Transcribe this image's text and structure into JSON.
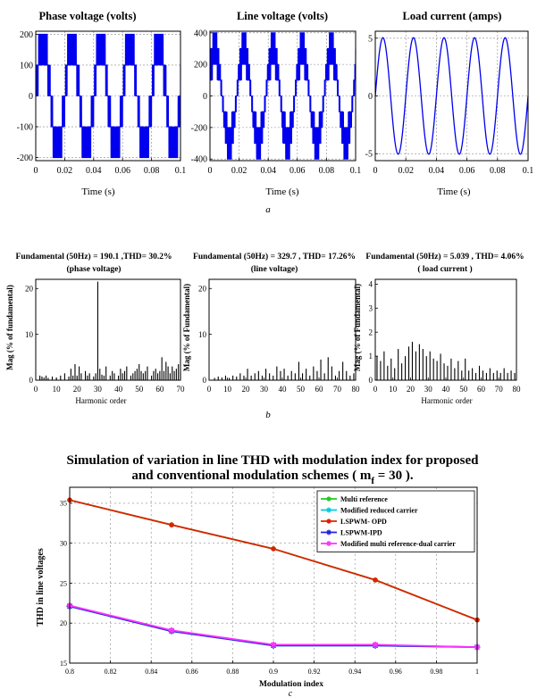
{
  "panel_letters": {
    "a": "a",
    "b": "b",
    "c": "c"
  },
  "colors": {
    "wave": "#0000ee",
    "bar": "#000000",
    "grid": "#888888",
    "multi_ref": "#22cc22",
    "mod_reduced": "#00ccdd",
    "opd": "#dd2200",
    "ipd": "#2222dd",
    "mmrdc": "#ff33ff"
  },
  "chart_data": [
    {
      "id": "a1",
      "type": "line",
      "title": "Phase voltage (volts)",
      "xlabel": "Time (s)",
      "ylabel": "",
      "xlim": [
        0,
        0.1
      ],
      "ylim": [
        -210,
        210
      ],
      "xticks": [
        0,
        0.02,
        0.04,
        0.06,
        0.08,
        0.1
      ],
      "xtick_labels": [
        "0",
        "0.02",
        "0.04",
        "0.06",
        "0.08",
        "0.1"
      ],
      "yticks": [
        -200,
        -100,
        0,
        100,
        200
      ],
      "ytick_labels": [
        "-200",
        "-100",
        "0",
        "100",
        "200"
      ],
      "grid": true,
      "waveform": {
        "kind": "multilevel_pwm",
        "fundamental_hz": 50,
        "amplitude": 200,
        "dc_step": 100,
        "levels": 2,
        "carrier_ratio": 30,
        "modulation_index": 0.95
      }
    },
    {
      "id": "a2",
      "type": "line",
      "title": "Line voltage (volts)",
      "xlabel": "Time (s)",
      "ylabel": "",
      "xlim": [
        0,
        0.1
      ],
      "ylim": [
        -410,
        410
      ],
      "xticks": [
        0,
        0.02,
        0.04,
        0.06,
        0.08,
        0.1
      ],
      "xtick_labels": [
        "0",
        "0.02",
        "0.04",
        "0.06",
        "0.08",
        "0.1"
      ],
      "yticks": [
        -400,
        -200,
        0,
        200,
        400
      ],
      "ytick_labels": [
        "-400",
        "-200",
        "0",
        "200",
        "400"
      ],
      "grid": true,
      "waveform": {
        "kind": "multilevel_line",
        "fundamental_hz": 50,
        "amplitude": 400,
        "dc_step": 100,
        "levels": 4,
        "carrier_ratio": 30,
        "modulation_index": 0.95
      }
    },
    {
      "id": "a3",
      "type": "line",
      "title": "Load current (amps)",
      "xlabel": "Time (s)",
      "ylabel": "",
      "xlim": [
        0,
        0.1
      ],
      "ylim": [
        -5.6,
        5.6
      ],
      "xticks": [
        0,
        0.02,
        0.04,
        0.06,
        0.08,
        0.1
      ],
      "xtick_labels": [
        "0",
        "0.02",
        "0.04",
        "0.06",
        "0.08",
        "0.1"
      ],
      "yticks": [
        -5,
        0,
        5
      ],
      "ytick_labels": [
        "-5",
        "0",
        "5"
      ],
      "grid": true,
      "waveform": {
        "kind": "sine",
        "fundamental_hz": 50,
        "amplitude": 5.039
      }
    },
    {
      "id": "b1",
      "type": "bar",
      "title": "Fundamental (50Hz) = 190.1 ,THD= 30.2%",
      "subtitle": "(phase voltage)",
      "xlabel": "Harmonic order",
      "ylabel": "Mag (% of fundamental)",
      "xlim": [
        0,
        70
      ],
      "ylim": [
        0,
        22
      ],
      "xticks": [
        0,
        10,
        20,
        30,
        40,
        50,
        60,
        70
      ],
      "xtick_labels": [
        "0",
        "10",
        "20",
        "30",
        "40",
        "50",
        "60",
        "70"
      ],
      "yticks": [
        0,
        10,
        20
      ],
      "ytick_labels": [
        "0",
        "10",
        "20"
      ],
      "x": [
        2,
        3,
        4,
        5,
        6,
        8,
        10,
        12,
        14,
        16,
        17,
        18,
        19,
        20,
        21,
        22,
        24,
        25,
        26,
        28,
        29,
        30,
        31,
        32,
        33,
        34,
        36,
        37,
        38,
        40,
        41,
        42,
        43,
        44,
        46,
        47,
        48,
        49,
        50,
        51,
        52,
        53,
        54,
        56,
        57,
        58,
        59,
        60,
        61,
        62,
        63,
        64,
        65,
        66,
        67,
        68,
        69,
        70
      ],
      "values": [
        1,
        0.8,
        0.6,
        1,
        0.5,
        0.8,
        0.6,
        1,
        1.5,
        0.8,
        2.5,
        1,
        3.5,
        1,
        3,
        1.5,
        2,
        1,
        1.5,
        0.8,
        1.5,
        21.5,
        2.5,
        1.2,
        1,
        3,
        1,
        2,
        1.5,
        1,
        2.5,
        1.5,
        2,
        3,
        1,
        1.5,
        2,
        2.5,
        3.5,
        2,
        1.5,
        2,
        3,
        1,
        2,
        2.5,
        1.5,
        2,
        5,
        2,
        4,
        3,
        1.5,
        3,
        2,
        2.5,
        3.5,
        2
      ]
    },
    {
      "id": "b2",
      "type": "bar",
      "title": "Fundamental (50Hz) = 329.7 , THD= 17.26%",
      "subtitle": "(line voltage)",
      "xlabel": "",
      "ylabel": "Mag (% of Fundamental)",
      "xlim": [
        0,
        80
      ],
      "ylim": [
        0,
        22
      ],
      "xticks": [
        0,
        10,
        20,
        30,
        40,
        50,
        60,
        70,
        80
      ],
      "xtick_labels": [
        "0",
        "10",
        "20",
        "30",
        "40",
        "50",
        "60",
        "70",
        "80"
      ],
      "yticks": [
        0,
        10,
        20
      ],
      "ytick_labels": [
        "0",
        "10",
        "20"
      ],
      "x": [
        3,
        5,
        7,
        9,
        11,
        13,
        15,
        17,
        19,
        21,
        23,
        25,
        27,
        29,
        31,
        33,
        35,
        37,
        39,
        41,
        43,
        45,
        47,
        49,
        51,
        53,
        55,
        57,
        59,
        61,
        63,
        65,
        67,
        69,
        71,
        73,
        75,
        77,
        79
      ],
      "values": [
        0.5,
        0.8,
        0.6,
        1,
        0.5,
        1,
        0.8,
        1.5,
        1,
        2.5,
        1,
        1.5,
        2,
        1,
        2.5,
        1.5,
        1,
        3,
        2,
        2.5,
        1,
        2,
        1.5,
        4,
        1.5,
        2.5,
        1,
        3,
        2,
        4.5,
        1.5,
        5,
        3,
        1,
        2,
        4,
        2,
        1,
        1.5
      ]
    },
    {
      "id": "b3",
      "type": "bar",
      "title": "Fundamental (50Hz) = 5.039 , THD= 4.06%",
      "subtitle": "( load current )",
      "xlabel": "Harmonic order",
      "ylabel": "Mag (% of Fundamental)",
      "xlim": [
        0,
        80
      ],
      "ylim": [
        0,
        4.2
      ],
      "xticks": [
        0,
        10,
        20,
        30,
        40,
        50,
        60,
        70,
        80
      ],
      "xtick_labels": [
        "0",
        "10",
        "20",
        "30",
        "40",
        "50",
        "60",
        "70",
        "80"
      ],
      "yticks": [
        0,
        1,
        2,
        3,
        4
      ],
      "ytick_labels": [
        "0",
        "1",
        "2",
        "3",
        "4"
      ],
      "x": [
        1,
        3,
        5,
        7,
        9,
        11,
        13,
        15,
        17,
        19,
        21,
        23,
        25,
        27,
        29,
        31,
        33,
        35,
        37,
        39,
        41,
        43,
        45,
        47,
        49,
        51,
        53,
        55,
        57,
        59,
        61,
        63,
        65,
        67,
        69,
        71,
        73,
        75,
        77,
        79
      ],
      "values": [
        1,
        0.8,
        1.2,
        0.6,
        0.9,
        0.5,
        1.3,
        0.7,
        1.0,
        1.4,
        1.6,
        1.2,
        1.5,
        1.3,
        1.0,
        1.2,
        0.9,
        0.8,
        1.1,
        0.7,
        0.6,
        0.9,
        0.5,
        0.8,
        0.4,
        0.9,
        0.4,
        0.5,
        0.3,
        0.6,
        0.4,
        0.3,
        0.5,
        0.3,
        0.4,
        0.3,
        0.5,
        0.3,
        0.4,
        0.3
      ]
    },
    {
      "id": "c",
      "type": "line",
      "title": "Simulation of variation in line THD with modulation index for proposed",
      "title_line2": "and conventional modulation schemes ( m",
      "title_sub": "f",
      "title_tail": " = 30 ).",
      "xlabel": "Modulation index",
      "ylabel": "THD in line voltages",
      "xlim": [
        0.8,
        1.0
      ],
      "ylim": [
        15,
        37
      ],
      "xticks": [
        0.8,
        0.82,
        0.84,
        0.86,
        0.88,
        0.9,
        0.92,
        0.94,
        0.96,
        0.98,
        1
      ],
      "xtick_labels": [
        "0.8",
        "0.82",
        "0.84",
        "0.86",
        "0.88",
        "0.9",
        "0.92",
        "0.94",
        "0.96",
        "0.98",
        "1"
      ],
      "yticks": [
        15,
        20,
        25,
        30,
        35
      ],
      "ytick_labels": [
        "15",
        "20",
        "25",
        "30",
        "35"
      ],
      "grid": true,
      "legend_position": "top-right",
      "x": [
        0.8,
        0.85,
        0.9,
        0.95,
        1.0
      ],
      "series": [
        {
          "name": "Multi reference",
          "values": [
            35.4,
            32.3,
            29.3,
            25.4,
            20.4
          ],
          "color": "#22cc22",
          "marker": "dot"
        },
        {
          "name": "Modified reduced carrier",
          "values": [
            22.1,
            19.0,
            17.2,
            17.2,
            17.0
          ],
          "color": "#00ccdd",
          "marker": "star"
        },
        {
          "name": "LSPWM- OPD",
          "values": [
            35.4,
            32.3,
            29.3,
            25.4,
            20.4
          ],
          "color": "#dd2200",
          "marker": "dot"
        },
        {
          "name": "LSPWM-IPD",
          "values": [
            22.1,
            19.0,
            17.2,
            17.2,
            17.0
          ],
          "color": "#2222dd",
          "marker": "star"
        },
        {
          "name": "Modified multi reference-dual carrier",
          "values": [
            22.2,
            19.1,
            17.3,
            17.3,
            17.0
          ],
          "color": "#ff33ff",
          "marker": "star"
        }
      ]
    }
  ]
}
